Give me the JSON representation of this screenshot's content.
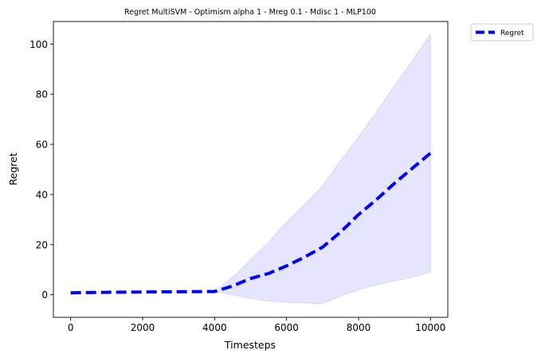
{
  "chart_data": {
    "type": "line",
    "title": "Regret MultiSVM - Optimism alpha 1 - Mreg 0.1 - Mdisc 1 - MLP100",
    "xlabel": "Timesteps",
    "ylabel": "Regret",
    "xlim": [
      -480,
      10480
    ],
    "ylim": [
      -9,
      109
    ],
    "xticks": [
      0,
      2000,
      4000,
      6000,
      8000,
      10000
    ],
    "yticks": [
      0,
      20,
      40,
      60,
      80,
      100
    ],
    "grid": false,
    "legend_position": "outside-top-right",
    "series": [
      {
        "name": "Regret",
        "color": "#0000ff",
        "line_style": "dashed",
        "x": [
          0,
          500,
          1000,
          2000,
          3000,
          4000,
          4500,
          5000,
          5500,
          6000,
          6500,
          7000,
          7500,
          8000,
          8500,
          9000,
          9500,
          10000
        ],
        "y": [
          0.8,
          0.9,
          1.0,
          1.1,
          1.2,
          1.3,
          3.5,
          6.5,
          8.5,
          11.5,
          15.0,
          19.0,
          25.0,
          32.0,
          38.0,
          44.5,
          50.5,
          56.5
        ]
      }
    ],
    "band": {
      "color": "#9999ff",
      "opacity": 0.25,
      "x": [
        4000,
        4500,
        5000,
        5500,
        6000,
        6500,
        7000,
        7500,
        8000,
        8500,
        9000,
        9500,
        10000
      ],
      "lower": [
        1.3,
        0.0,
        -1.5,
        -2.5,
        -3.0,
        -3.3,
        -3.5,
        -0.5,
        2.0,
        4.0,
        5.5,
        7.0,
        9.0
      ],
      "upper": [
        1.3,
        7.0,
        14.0,
        21.0,
        29.0,
        36.0,
        43.5,
        53.5,
        63.0,
        73.0,
        83.5,
        93.5,
        104.0
      ]
    }
  }
}
